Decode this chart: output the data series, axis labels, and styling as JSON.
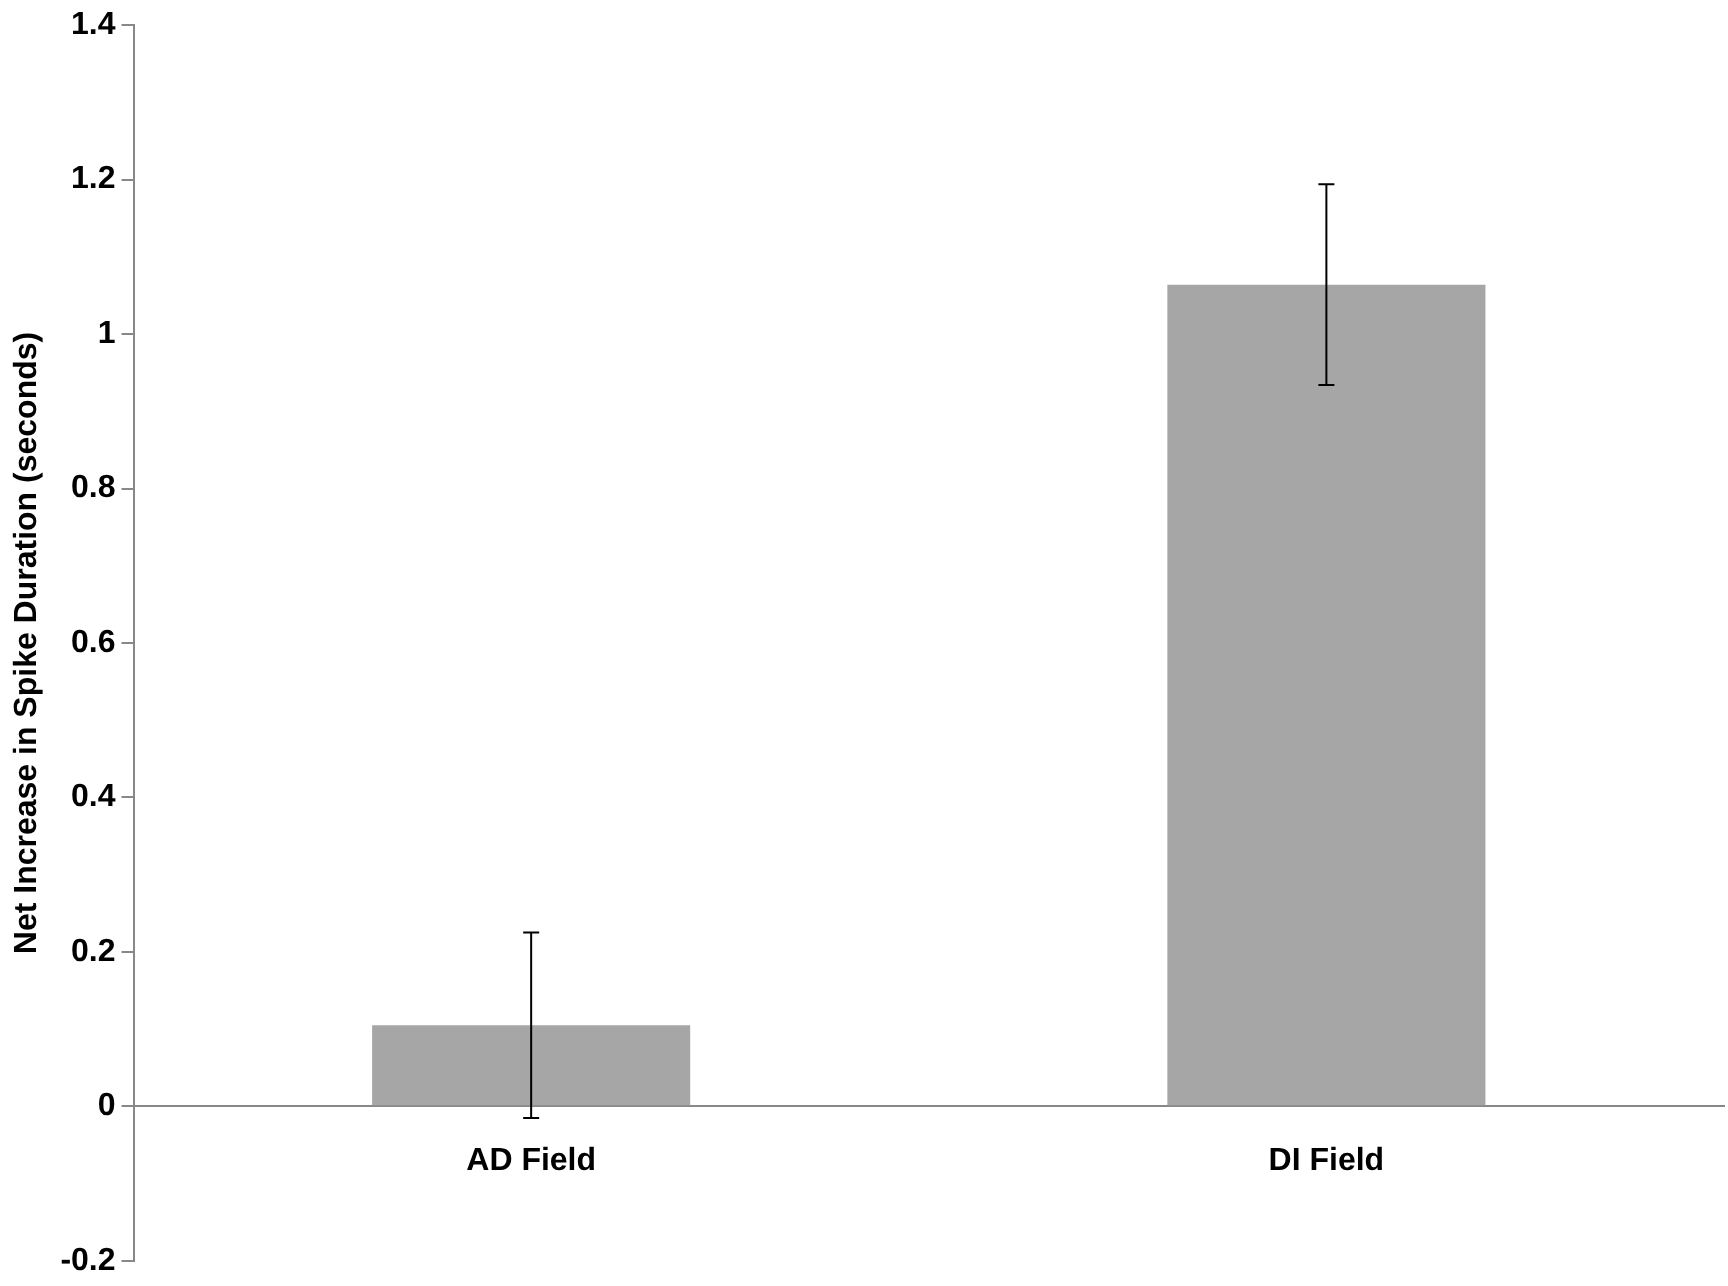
{
  "chart_data": {
    "type": "bar",
    "ylabel": "Net Increase in Spike Duration (seconds)",
    "categories": [
      "AD Field",
      "DI Field"
    ],
    "values": [
      0.105,
      1.064
    ],
    "errors": [
      0.12,
      0.13
    ],
    "color": "#a6a6a6",
    "ylim": [
      -0.2,
      1.4
    ],
    "yticks": [
      -0.2,
      0,
      0.2,
      0.4,
      0.6,
      0.8,
      1,
      1.2,
      1.4
    ],
    "grid": false,
    "legend": false
  }
}
